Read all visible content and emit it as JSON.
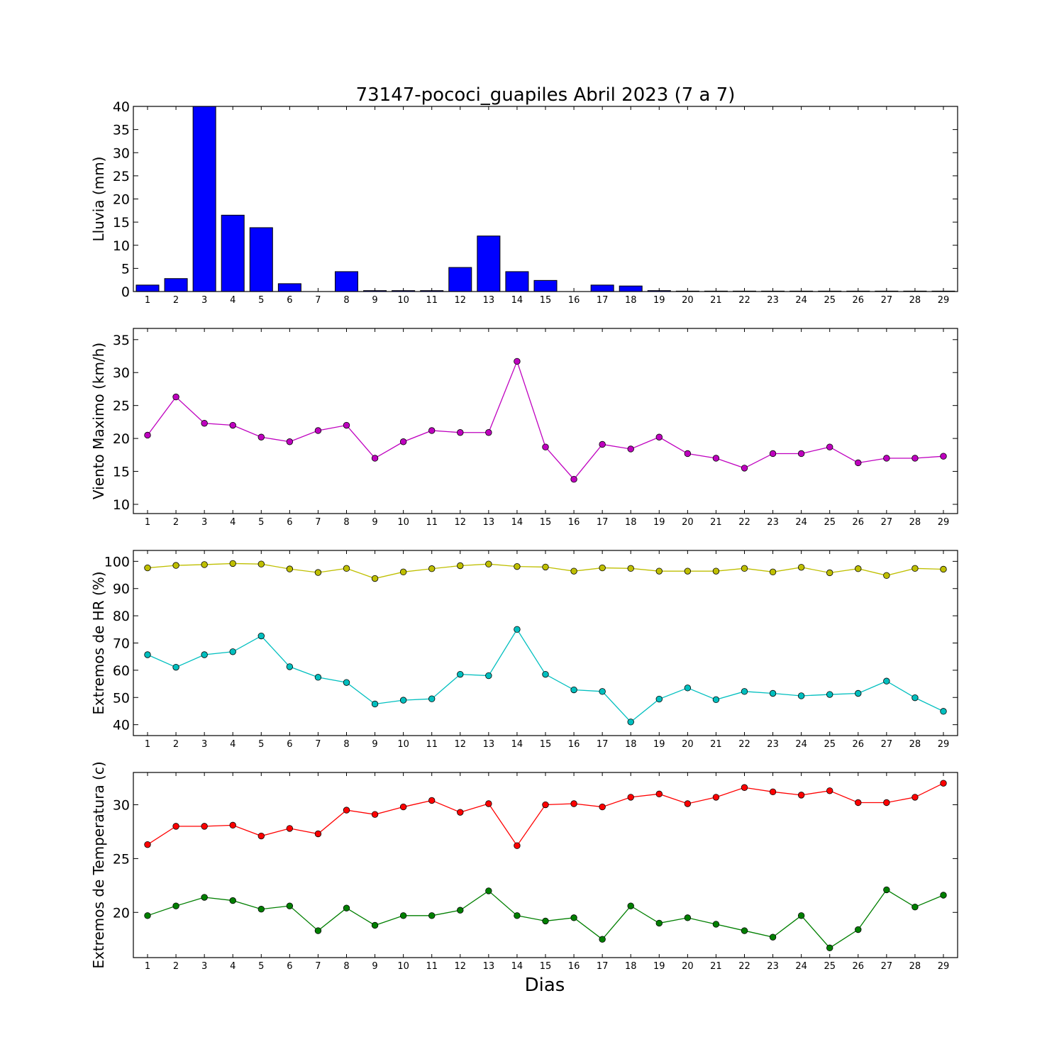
{
  "figure": {
    "title": "73147-pococi_guapiles Abril 2023  (7 a 7)",
    "xlabel": "Dias"
  },
  "chart_data": [
    {
      "type": "bar",
      "name": "rain",
      "ylabel": "Lluvia (mm)",
      "ylim": [
        0,
        40
      ],
      "yticks": [
        0,
        5,
        10,
        15,
        20,
        25,
        30,
        35,
        40
      ],
      "categories": [
        1,
        2,
        3,
        4,
        5,
        6,
        7,
        8,
        9,
        10,
        11,
        12,
        13,
        14,
        15,
        16,
        17,
        18,
        19,
        20,
        21,
        22,
        23,
        24,
        25,
        26,
        27,
        28,
        29
      ],
      "values": [
        1.4,
        2.8,
        40,
        16.5,
        13.8,
        1.7,
        0,
        4.3,
        0.2,
        0.2,
        0.2,
        5.2,
        12,
        4.3,
        2.4,
        0,
        1.4,
        1.2,
        0.2,
        0.1,
        0.1,
        0.1,
        0.1,
        0.1,
        0.1,
        0.1,
        0.1,
        0.1,
        0.1
      ],
      "color": "#0000ff",
      "grid": false
    },
    {
      "type": "line",
      "name": "wind",
      "ylabel": "Viento Maximo (km/h)",
      "ylim": [
        8.6,
        36.7
      ],
      "yticks": [
        10,
        15,
        20,
        25,
        30,
        35
      ],
      "x": [
        1,
        2,
        3,
        4,
        5,
        6,
        7,
        8,
        9,
        10,
        11,
        12,
        13,
        14,
        15,
        16,
        17,
        18,
        19,
        20,
        21,
        22,
        23,
        24,
        25,
        26,
        27,
        28,
        29
      ],
      "series": [
        {
          "color": "#bf00bf",
          "values": [
            20.5,
            26.3,
            22.3,
            22.0,
            20.2,
            19.5,
            21.2,
            22.0,
            17.0,
            19.5,
            21.2,
            20.9,
            20.9,
            31.7,
            18.7,
            13.8,
            19.1,
            18.4,
            20.2,
            17.7,
            17.0,
            15.5,
            17.7,
            17.7,
            18.7,
            16.3,
            17.0,
            17.0,
            17.3
          ]
        }
      ],
      "grid": false
    },
    {
      "type": "line",
      "name": "humidity",
      "ylabel": "Extremos de HR (%)",
      "ylim": [
        36,
        104
      ],
      "yticks": [
        40,
        50,
        60,
        70,
        80,
        90,
        100
      ],
      "x": [
        1,
        2,
        3,
        4,
        5,
        6,
        7,
        8,
        9,
        10,
        11,
        12,
        13,
        14,
        15,
        16,
        17,
        18,
        19,
        20,
        21,
        22,
        23,
        24,
        25,
        26,
        27,
        28,
        29
      ],
      "series": [
        {
          "color": "#bfbf00",
          "values": [
            97.6,
            98.5,
            98.8,
            99.2,
            99.0,
            97.2,
            95.9,
            97.4,
            93.7,
            96.1,
            97.3,
            98.4,
            99.0,
            98.1,
            97.9,
            96.4,
            97.6,
            97.4,
            96.4,
            96.4,
            96.4,
            97.4,
            96.1,
            97.8,
            95.8,
            97.3,
            94.8,
            97.4,
            97.1
          ]
        },
        {
          "color": "#00bfbf",
          "values": [
            65.7,
            61.1,
            65.7,
            66.8,
            72.6,
            61.3,
            57.4,
            55.5,
            47.6,
            49.0,
            49.5,
            58.5,
            58.0,
            75.0,
            58.5,
            52.8,
            52.2,
            41.0,
            49.4,
            53.5,
            49.2,
            52.2,
            51.5,
            50.6,
            51.1,
            51.5,
            56.0,
            49.9,
            44.9
          ]
        }
      ],
      "grid": false
    },
    {
      "type": "line",
      "name": "temperature",
      "ylabel": "Extremos de Temperatura (c)",
      "ylim": [
        15.8,
        33.0
      ],
      "yticks": [
        20,
        25,
        30
      ],
      "x": [
        1,
        2,
        3,
        4,
        5,
        6,
        7,
        8,
        9,
        10,
        11,
        12,
        13,
        14,
        15,
        16,
        17,
        18,
        19,
        20,
        21,
        22,
        23,
        24,
        25,
        26,
        27,
        28,
        29
      ],
      "series": [
        {
          "color": "#ff0000",
          "values": [
            26.3,
            28.0,
            28.0,
            28.1,
            27.1,
            27.8,
            27.3,
            29.5,
            29.1,
            29.8,
            30.4,
            29.3,
            30.1,
            26.2,
            30.0,
            30.1,
            29.8,
            30.7,
            31.0,
            30.1,
            30.7,
            31.6,
            31.2,
            30.9,
            31.3,
            30.2,
            30.2,
            30.7,
            32.0
          ]
        },
        {
          "color": "#007f00",
          "values": [
            19.7,
            20.6,
            21.4,
            21.1,
            20.3,
            20.6,
            18.3,
            20.4,
            18.8,
            19.7,
            19.7,
            20.2,
            22.0,
            19.7,
            19.2,
            19.5,
            17.5,
            20.6,
            19.0,
            19.5,
            18.9,
            18.3,
            17.7,
            19.7,
            16.7,
            18.4,
            22.1,
            20.5,
            21.6
          ]
        }
      ],
      "grid": false
    }
  ]
}
